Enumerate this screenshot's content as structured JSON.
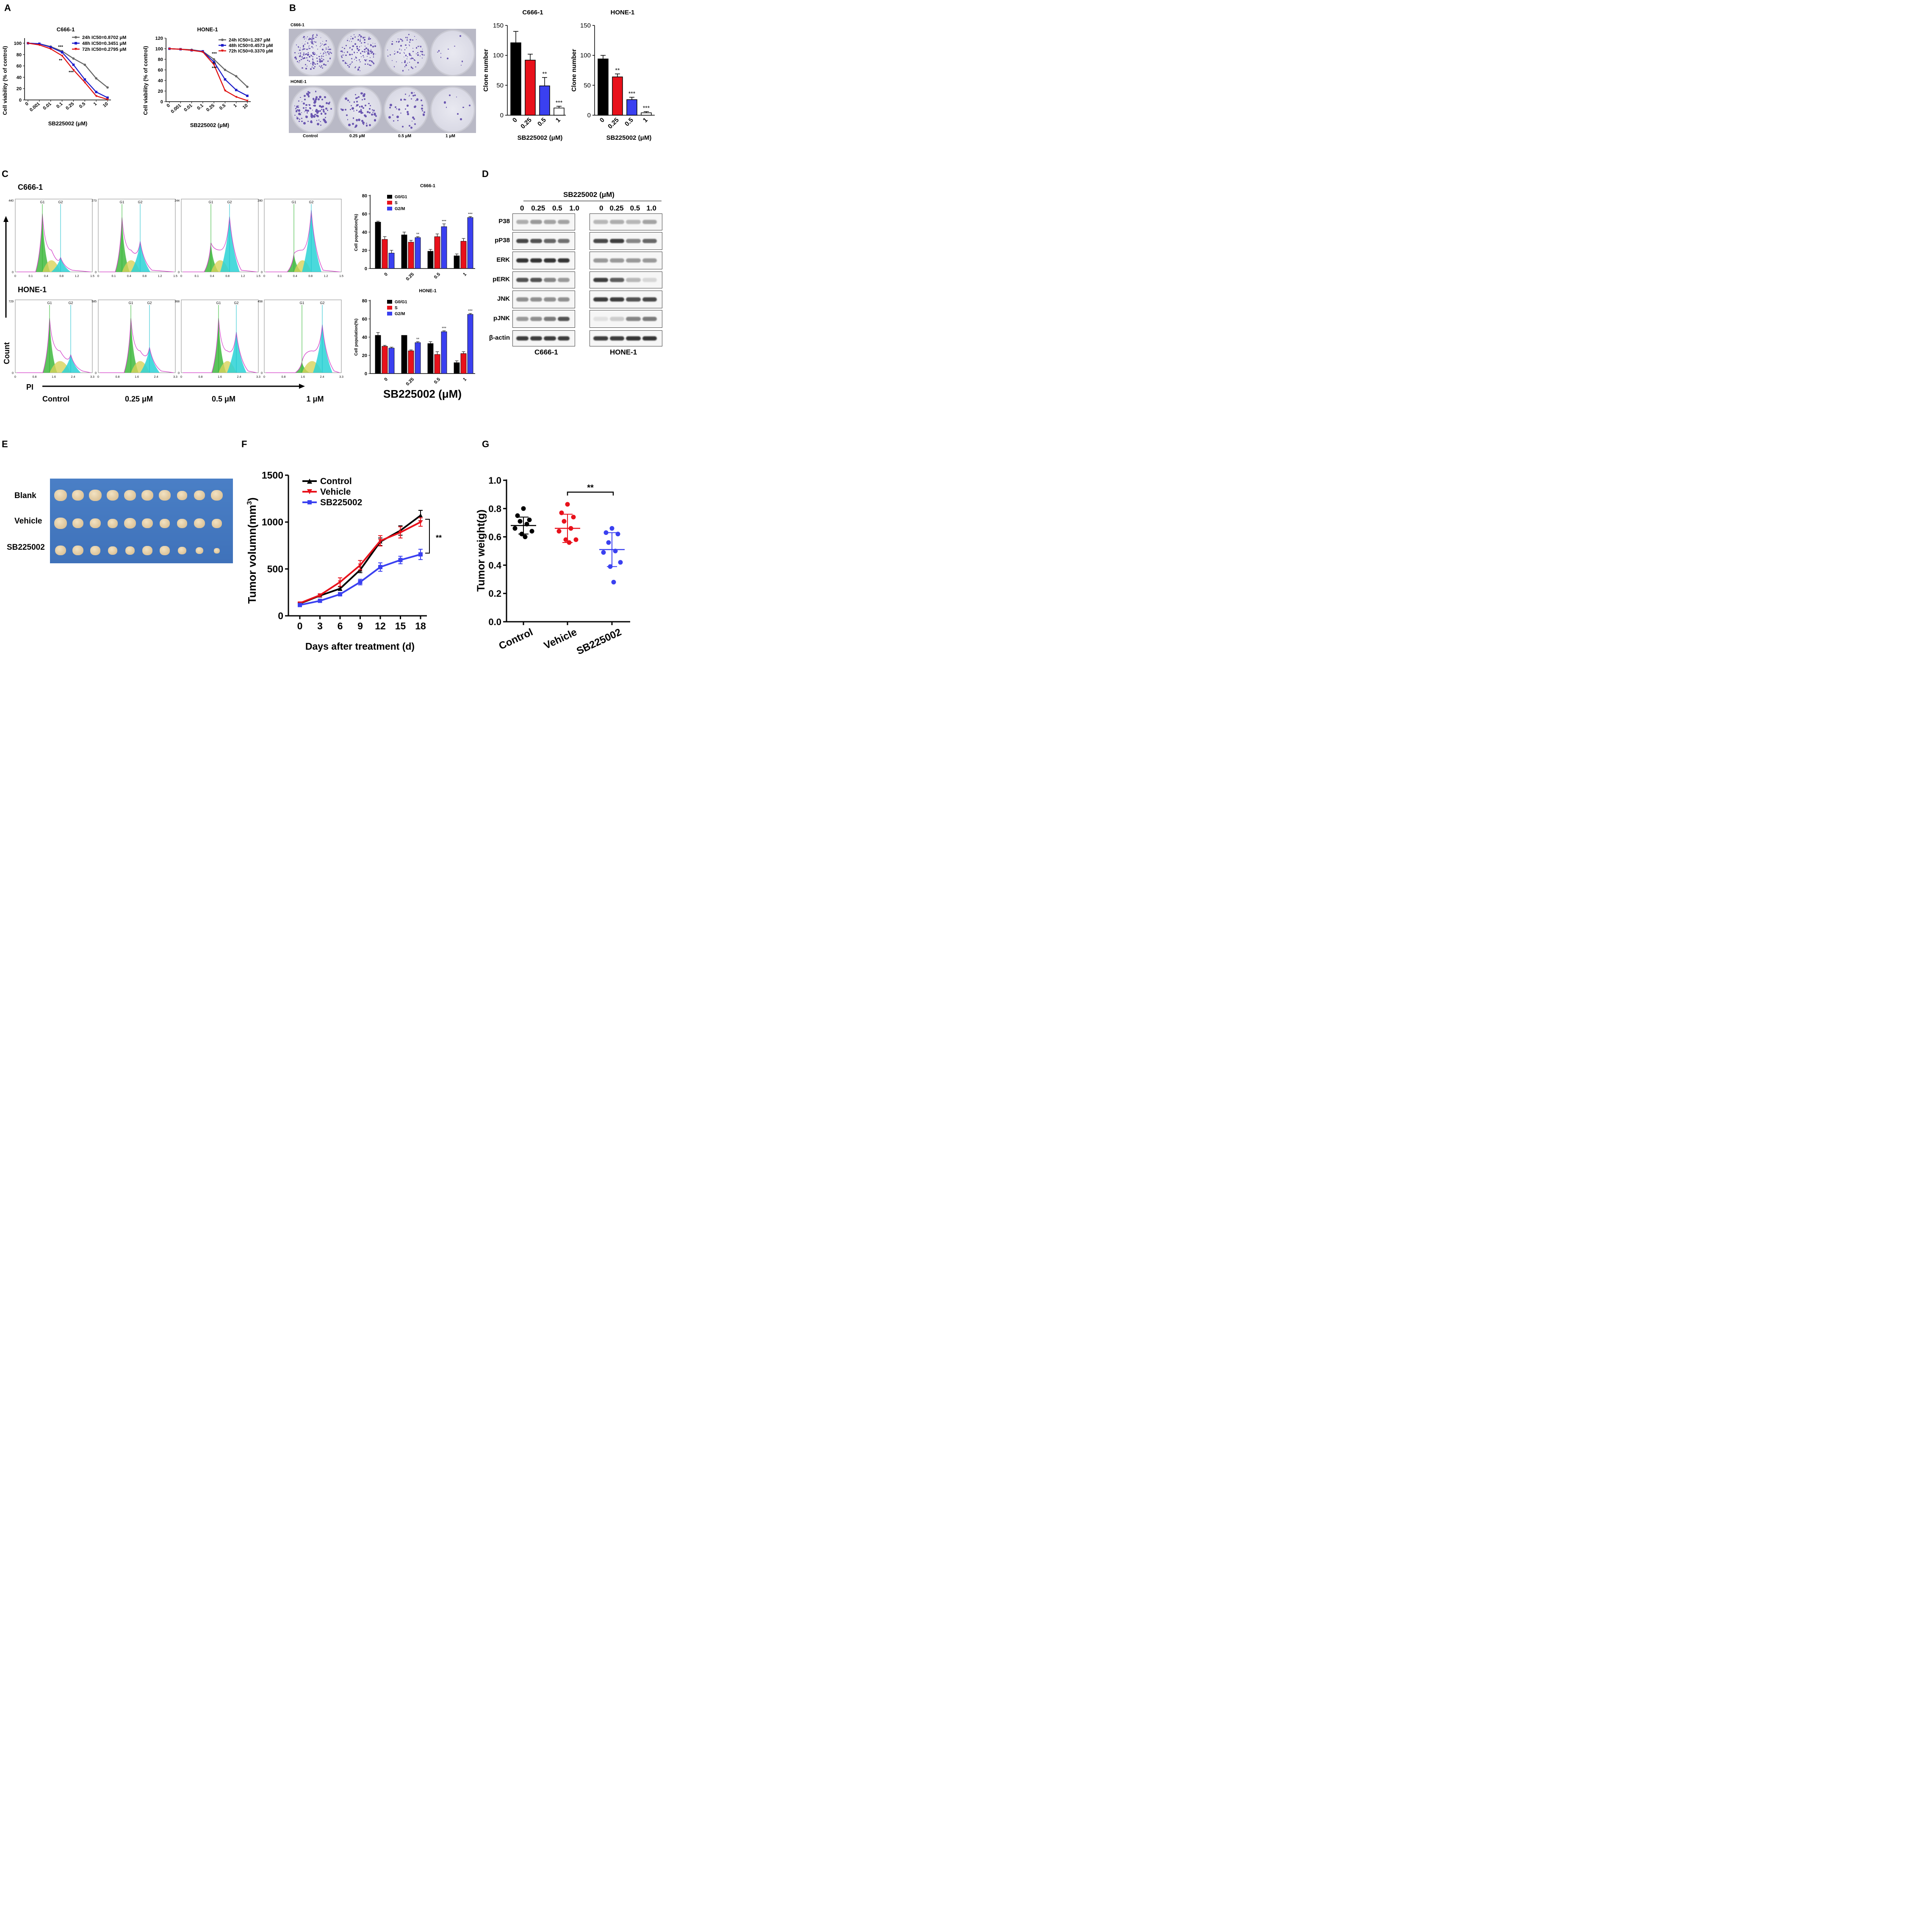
{
  "panel_labels": {
    "a": "A",
    "b": "B",
    "c": "C",
    "d": "D",
    "e": "E",
    "f": "F",
    "g": "G"
  },
  "panelA": {
    "xlabel": "SB225002 (μM)",
    "ylabel": "Cell viability (% of control)",
    "colors": {
      "24h": "#666666",
      "48h": "#1c1cc8",
      "72h": "#e01010"
    },
    "chart_c666": {
      "title": "C666-1",
      "ticks": [
        "0",
        "0.001",
        "0.01",
        "0.1",
        "0.25",
        "0.5",
        "1",
        "10"
      ],
      "yticks": [
        "0",
        "20",
        "40",
        "60",
        "80",
        "100"
      ],
      "legend": [
        "24h IC50=0.8702 μM",
        "48h IC50=0.3451 μM",
        "72h IC50=0.2795 μM"
      ],
      "stars": [
        "***",
        "**",
        "***"
      ]
    },
    "chart_hone": {
      "title": "HONE-1",
      "ticks": [
        "0",
        "0.001",
        "0.01",
        "0.1",
        "0.25",
        "0.5",
        "1",
        "10"
      ],
      "yticks": [
        "0",
        "20",
        "40",
        "60",
        "80",
        "100",
        "120"
      ],
      "legend": [
        "24h IC50=1.287 μM",
        "48h IC50=0.4573 μM",
        "72h IC50=0.3370 μM"
      ],
      "stars": [
        "***",
        "**",
        "***"
      ]
    }
  },
  "panelB": {
    "row_labels": [
      "C666-1",
      "HONE-1"
    ],
    "dish_labels": [
      "Control",
      "0.25 μM",
      "0.5 μM",
      "1 μM"
    ],
    "bar_c666": {
      "title": "C666-1",
      "ylabel": "Clone number",
      "xlabel": "SB225002 (μM)",
      "ticks": [
        "0",
        "0.25",
        "0.5",
        "1"
      ],
      "yticks": [
        "0",
        "50",
        "100",
        "150"
      ],
      "stars": [
        "",
        "",
        "**",
        "***"
      ]
    },
    "bar_hone": {
      "title": "HONE-1",
      "ylabel": "Clone number",
      "xlabel": "SB225002 (μM)",
      "ticks": [
        "0",
        "0.25",
        "0.5",
        "1"
      ],
      "yticks": [
        "0",
        "50",
        "100",
        "150"
      ],
      "stars": [
        "",
        "**",
        "***",
        "***"
      ]
    }
  },
  "panelC": {
    "row_labels": [
      "C666-1",
      "HONE-1"
    ],
    "count_label": "Count",
    "pi_label": "PI",
    "conditions": [
      "Control",
      "0.25 μM",
      "0.5 μM",
      "1 μM"
    ],
    "g1": "G1",
    "g2": "G2",
    "hist_ymax_top": [
      "440",
      "273",
      "244",
      "280"
    ],
    "hist_ymax_bottom": [
      "729",
      "585",
      "368",
      "458"
    ],
    "xticks_top": [
      "0",
      "0.1",
      "0.4",
      "0.8",
      "1.2",
      "1.5"
    ],
    "xticks_bottom": [
      "0",
      "0.8",
      "1.6",
      "2.4",
      "3.3"
    ],
    "xlabel_big": "SB225002 (μM)",
    "bar_c666": {
      "title": "C666-1",
      "ylabel": "Cell population(%)",
      "ticks": [
        "0",
        "0.25",
        "0.5",
        "1"
      ],
      "yticks": [
        "0",
        "20",
        "40",
        "60",
        "80"
      ],
      "legend": [
        "G0/G1",
        "S",
        "G2/M"
      ],
      "stars": [
        "",
        "**",
        "***",
        "***"
      ]
    },
    "bar_hone": {
      "title": "HONE-1",
      "ylabel": "Cell population(%)",
      "ticks": [
        "0",
        "0.25",
        "0.5",
        "1"
      ],
      "yticks": [
        "0",
        "20",
        "40",
        "60",
        "80"
      ],
      "legend": [
        "G0/G1",
        "S",
        "G2/M"
      ],
      "stars": [
        "",
        "**",
        "***",
        "***"
      ]
    }
  },
  "panelD": {
    "header": "SB225002 (μM)",
    "doses": [
      "0",
      "0.25",
      "0.5",
      "1.0"
    ],
    "proteins": [
      "P38",
      "pP38",
      "ERK",
      "pERK",
      "JNK",
      "pJNK",
      "β-actin"
    ],
    "cells": [
      "C666-1",
      "HONE-1"
    ]
  },
  "panelE": {
    "rows": [
      "Blank",
      "Vehicle",
      "SB225002"
    ]
  },
  "panelF": {
    "ylabel": "Tumor volumn(mm",
    "ylabel_sup": "3",
    "ylabel_end": ")",
    "xlabel": "Days after  treatment (d)",
    "ticks": [
      "0",
      "3",
      "6",
      "9",
      "12",
      "15",
      "18"
    ],
    "yticks": [
      "0",
      "500",
      "1000",
      "1500"
    ],
    "legend": [
      "Control",
      "Vehicle",
      "SB225002"
    ],
    "sig": "**"
  },
  "panelG": {
    "ylabel": "Tumor weight(g)",
    "ticks": [
      "Control",
      "Vehicle",
      "SB225002"
    ],
    "yticks": [
      "0.0",
      "0.2",
      "0.4",
      "0.6",
      "0.8",
      "1.0"
    ],
    "sig": "**"
  },
  "chart_data": [
    {
      "type": "line",
      "title": "C666-1",
      "xlabel": "SB225002 (μM)",
      "ylabel": "Cell viability (% of control)",
      "categories": [
        "0",
        "0.001",
        "0.01",
        "0.1",
        "0.25",
        "0.5",
        "1",
        "10"
      ],
      "ylim": [
        0,
        100
      ],
      "series": [
        {
          "name": "24h IC50=0.8702 μM",
          "values": [
            100,
            99,
            94,
            86,
            73,
            62,
            38,
            22
          ]
        },
        {
          "name": "48h IC50=0.3451 μM",
          "values": [
            100,
            99,
            93,
            84,
            62,
            36,
            14,
            4
          ]
        },
        {
          "name": "72h IC50=0.2795 μM",
          "values": [
            100,
            97,
            90,
            78,
            53,
            31,
            7,
            1
          ]
        }
      ]
    },
    {
      "type": "line",
      "title": "HONE-1",
      "xlabel": "SB225002 (μM)",
      "ylabel": "Cell viability (% of control)",
      "categories": [
        "0",
        "0.001",
        "0.01",
        "0.1",
        "0.25",
        "0.5",
        "1",
        "10"
      ],
      "ylim": [
        0,
        120
      ],
      "series": [
        {
          "name": "24h IC50=1.287 μM",
          "values": [
            100,
            99,
            98,
            95,
            80,
            60,
            48,
            28
          ]
        },
        {
          "name": "48h IC50=0.4573 μM",
          "values": [
            100,
            99,
            97,
            95,
            75,
            42,
            22,
            11
          ]
        },
        {
          "name": "72h IC50=0.3370 μM",
          "values": [
            100,
            99,
            97,
            94,
            70,
            21,
            9,
            2
          ]
        }
      ]
    },
    {
      "type": "bar",
      "title": "C666-1",
      "xlabel": "SB225002 (μM)",
      "ylabel": "Clone number",
      "categories": [
        "0",
        "0.25",
        "0.5",
        "1"
      ],
      "values": [
        121,
        92,
        49,
        12
      ],
      "errors": [
        19,
        10,
        14,
        3
      ],
      "ylim": [
        0,
        150
      ],
      "colors": [
        "#000000",
        "#e8111b",
        "#3a40f0",
        "#ffffff"
      ]
    },
    {
      "type": "bar",
      "title": "HONE-1",
      "xlabel": "SB225002 (μM)",
      "ylabel": "Clone number",
      "categories": [
        "0",
        "0.25",
        "0.5",
        "1"
      ],
      "values": [
        94,
        64,
        26,
        4
      ],
      "errors": [
        6,
        5,
        4,
        2
      ],
      "ylim": [
        0,
        150
      ],
      "colors": [
        "#000000",
        "#e8111b",
        "#3a40f0",
        "#ffffff"
      ]
    },
    {
      "type": "bar",
      "title": "C666-1",
      "ylabel": "Cell population(%)",
      "categories": [
        "0",
        "0.25",
        "0.5",
        "1"
      ],
      "ylim": [
        0,
        80
      ],
      "series": [
        {
          "name": "G0/G1",
          "values": [
            51,
            37,
            19,
            14
          ],
          "errors": [
            1,
            3,
            2,
            2
          ],
          "color": "#000000"
        },
        {
          "name": "S",
          "values": [
            32,
            29,
            35,
            30
          ],
          "errors": [
            3,
            2,
            3,
            3
          ],
          "color": "#e8111b"
        },
        {
          "name": "G2/M",
          "values": [
            17,
            34,
            46,
            56
          ],
          "errors": [
            3,
            1,
            3,
            1
          ],
          "color": "#3a40f0"
        }
      ]
    },
    {
      "type": "bar",
      "title": "HONE-1",
      "ylabel": "Cell population(%)",
      "categories": [
        "0",
        "0.25",
        "0.5",
        "1"
      ],
      "ylim": [
        0,
        80
      ],
      "series": [
        {
          "name": "G0/G1",
          "values": [
            42,
            42,
            33,
            12
          ],
          "errors": [
            3,
            0,
            2,
            2
          ],
          "color": "#000000"
        },
        {
          "name": "S",
          "values": [
            30,
            25,
            21,
            22
          ],
          "errors": [
            1,
            1,
            3,
            2
          ],
          "color": "#e8111b"
        },
        {
          "name": "G2/M",
          "values": [
            28,
            34,
            46,
            65
          ],
          "errors": [
            1,
            1,
            1,
            1
          ],
          "color": "#3a40f0"
        }
      ]
    },
    {
      "type": "line",
      "title": "",
      "xlabel": "Days after  treatment (d)",
      "ylabel": "Tumor volumn(mm3)",
      "x": [
        0,
        3,
        6,
        9,
        12,
        15,
        18
      ],
      "ylim": [
        0,
        1500
      ],
      "series": [
        {
          "name": "Control",
          "values": [
            130,
            215,
            290,
            490,
            790,
            910,
            1070
          ],
          "errors": [
            10,
            15,
            20,
            30,
            40,
            50,
            55
          ],
          "color": "#000000"
        },
        {
          "name": "Vehicle",
          "values": [
            135,
            220,
            360,
            540,
            800,
            890,
            1000
          ],
          "errors": [
            10,
            15,
            45,
            50,
            55,
            60,
            45
          ],
          "color": "#e8111b"
        },
        {
          "name": "SB225002",
          "values": [
            115,
            160,
            230,
            360,
            520,
            595,
            655
          ],
          "errors": [
            10,
            12,
            18,
            30,
            45,
            40,
            55
          ],
          "color": "#3a40f0"
        }
      ]
    },
    {
      "type": "scatter",
      "title": "",
      "ylabel": "Tumor weight(g)",
      "categories": [
        "Control",
        "Vehicle",
        "SB225002"
      ],
      "ylim": [
        0,
        1.0
      ],
      "groups": [
        {
          "name": "Control",
          "values": [
            0.8,
            0.75,
            0.72,
            0.71,
            0.69,
            0.66,
            0.64,
            0.62,
            0.6
          ],
          "mean": 0.68,
          "sd": 0.06,
          "color": "#000000"
        },
        {
          "name": "Vehicle",
          "values": [
            0.83,
            0.77,
            0.74,
            0.71,
            0.66,
            0.64,
            0.58,
            0.58,
            0.56
          ],
          "mean": 0.66,
          "sd": 0.1,
          "color": "#e8111b"
        },
        {
          "name": "SB225002",
          "values": [
            0.66,
            0.63,
            0.62,
            0.56,
            0.5,
            0.49,
            0.42,
            0.39,
            0.28
          ],
          "mean": 0.51,
          "sd": 0.12,
          "color": "#3a40f0"
        }
      ]
    }
  ]
}
